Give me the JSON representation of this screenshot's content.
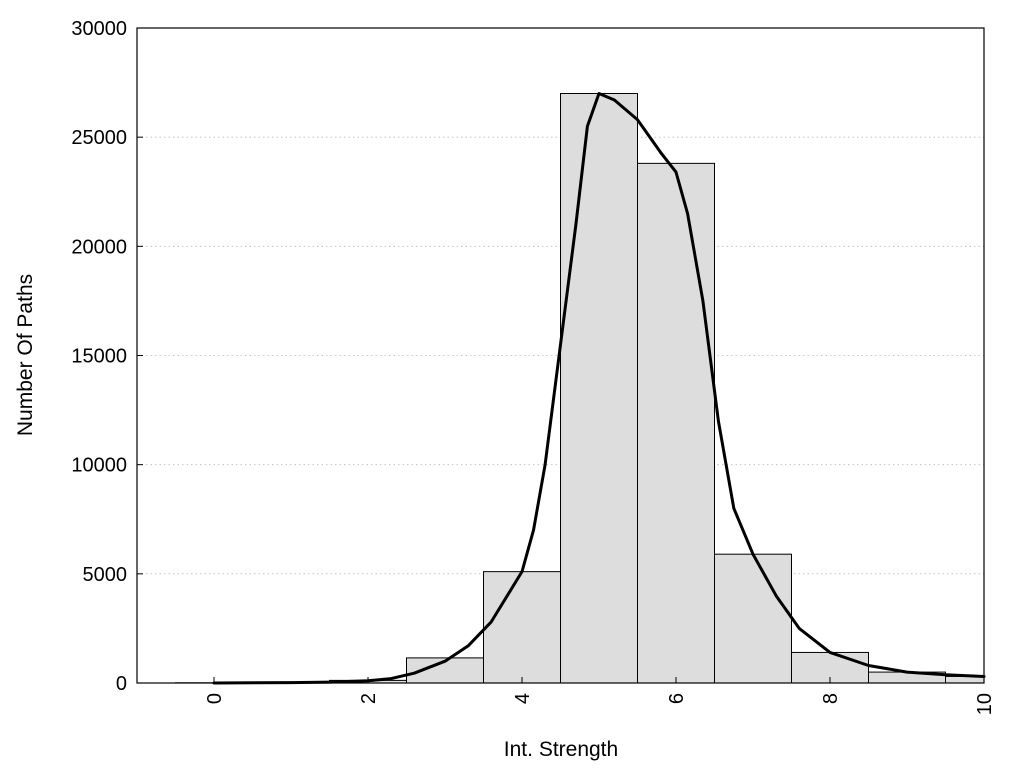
{
  "chart_data": {
    "type": "bar",
    "xlabel": "Int. Strength",
    "ylabel": "Number Of Paths",
    "xlim": [
      -1,
      10
    ],
    "ylim": [
      0,
      30000
    ],
    "x_ticks": [
      "0",
      "2",
      "4",
      "6",
      "8",
      "10"
    ],
    "y_ticks": [
      "0",
      "5000",
      "10000",
      "15000",
      "20000",
      "25000",
      "30000"
    ],
    "grid": "horizontal-dotted",
    "legend": "none",
    "bar_color": "#dddddd",
    "bars": [
      {
        "x": 0,
        "value": 10
      },
      {
        "x": 1,
        "value": 30
      },
      {
        "x": 2,
        "value": 120
      },
      {
        "x": 3,
        "value": 1150
      },
      {
        "x": 4,
        "value": 5100
      },
      {
        "x": 5,
        "value": 27000
      },
      {
        "x": 6,
        "value": 23800
      },
      {
        "x": 7,
        "value": 5900
      },
      {
        "x": 8,
        "value": 1400
      },
      {
        "x": 9,
        "value": 500
      },
      {
        "x": 10,
        "value": 300
      }
    ],
    "curve": [
      [
        0,
        0
      ],
      [
        1,
        20
      ],
      [
        1.5,
        40
      ],
      [
        2,
        100
      ],
      [
        2.3,
        200
      ],
      [
        2.6,
        450
      ],
      [
        3,
        1000
      ],
      [
        3.3,
        1700
      ],
      [
        3.6,
        2800
      ],
      [
        4,
        5100
      ],
      [
        4.15,
        7000
      ],
      [
        4.3,
        10000
      ],
      [
        4.5,
        15500
      ],
      [
        4.7,
        21000
      ],
      [
        4.85,
        25500
      ],
      [
        5,
        27000
      ],
      [
        5.2,
        26700
      ],
      [
        5.5,
        25800
      ],
      [
        5.8,
        24300
      ],
      [
        6,
        23400
      ],
      [
        6.15,
        21500
      ],
      [
        6.35,
        17500
      ],
      [
        6.55,
        12000
      ],
      [
        6.75,
        8000
      ],
      [
        7,
        5900
      ],
      [
        7.3,
        4000
      ],
      [
        7.6,
        2500
      ],
      [
        8,
        1400
      ],
      [
        8.5,
        800
      ],
      [
        9,
        500
      ],
      [
        9.5,
        380
      ],
      [
        10,
        300
      ]
    ]
  }
}
